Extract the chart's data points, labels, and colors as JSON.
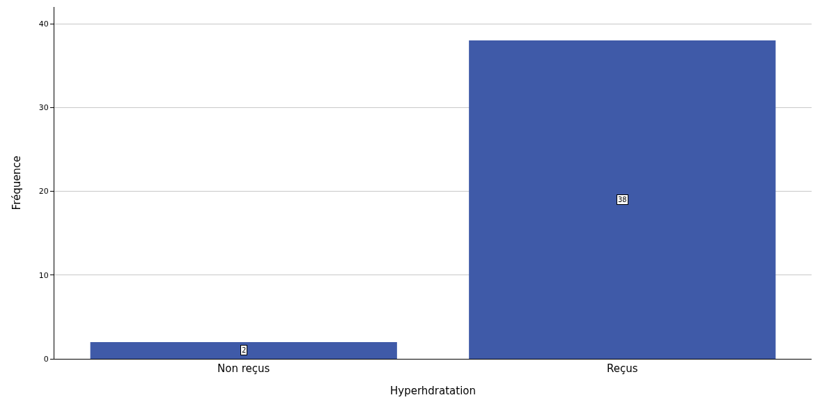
{
  "chart_data": {
    "type": "bar",
    "xlabel": "Hyperhdratation",
    "ylabel": "Fréquence",
    "categories": [
      "Non reçus",
      "Reçus"
    ],
    "values": [
      2,
      38
    ],
    "color": "#3f5aa8",
    "ylim": [
      0,
      42
    ],
    "yticks": [
      0,
      10,
      20,
      30,
      40
    ],
    "grid": "y",
    "data_labels": true
  }
}
